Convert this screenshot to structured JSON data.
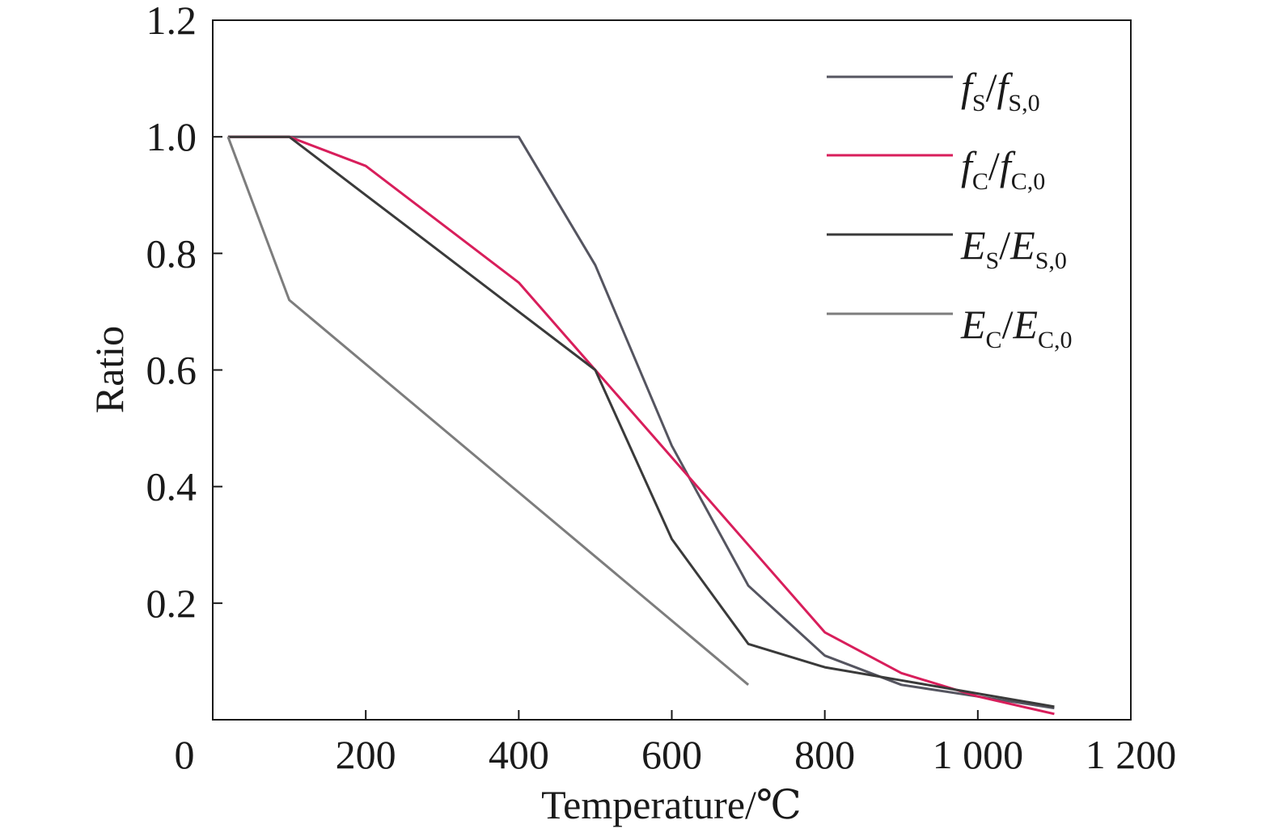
{
  "chart_data": {
    "type": "line",
    "title": "",
    "xlabel": "Temperature/℃",
    "ylabel": "Ratio",
    "xlim": [
      0,
      1200
    ],
    "ylim": [
      0,
      1.2
    ],
    "x_ticks": [
      {
        "value": 0,
        "label": "0"
      },
      {
        "value": 200,
        "label": "200"
      },
      {
        "value": 400,
        "label": "400"
      },
      {
        "value": 600,
        "label": "600"
      },
      {
        "value": 800,
        "label": "800"
      },
      {
        "value": 1000,
        "label": "1 000"
      },
      {
        "value": 1200,
        "label": "1 200"
      }
    ],
    "y_ticks": [
      {
        "value": 0.2,
        "label": "0.2"
      },
      {
        "value": 0.4,
        "label": "0.4"
      },
      {
        "value": 0.6,
        "label": "0.6"
      },
      {
        "value": 0.8,
        "label": "0.8"
      },
      {
        "value": 1.0,
        "label": "1.0"
      },
      {
        "value": 1.2,
        "label": "1.2"
      }
    ],
    "grid": false,
    "legend_position": "top-right",
    "series": [
      {
        "name": "fS/fS,0",
        "legend": {
          "a": "f",
          "a_sub": "S",
          "b": "f",
          "b_sub": "S,0"
        },
        "color": "#555560",
        "x": [
          20,
          100,
          400,
          500,
          600,
          700,
          800,
          900,
          1000,
          1100
        ],
        "y": [
          1.0,
          1.0,
          1.0,
          0.78,
          0.47,
          0.23,
          0.11,
          0.06,
          0.04,
          0.02
        ]
      },
      {
        "name": "fC/fC,0",
        "legend": {
          "a": "f",
          "a_sub": "C",
          "b": "f",
          "b_sub": "C,0"
        },
        "color": "#d81e5b",
        "x": [
          20,
          100,
          200,
          300,
          400,
          500,
          600,
          700,
          800,
          900,
          1000,
          1100
        ],
        "y": [
          1.0,
          1.0,
          0.95,
          0.85,
          0.75,
          0.6,
          0.45,
          0.3,
          0.15,
          0.08,
          0.04,
          0.01
        ]
      },
      {
        "name": "ES/ES,0",
        "legend": {
          "a": "E",
          "a_sub": "S",
          "b": "E",
          "b_sub": "S,0"
        },
        "color": "#3a3a3a",
        "x": [
          20,
          100,
          200,
          300,
          400,
          500,
          600,
          700,
          800,
          900,
          1000,
          1100
        ],
        "y": [
          1.0,
          1.0,
          0.9,
          0.8,
          0.7,
          0.6,
          0.31,
          0.13,
          0.09,
          0.0675,
          0.045,
          0.0225
        ]
      },
      {
        "name": "EC/EC,0",
        "legend": {
          "a": "E",
          "a_sub": "C",
          "b": "E",
          "b_sub": "C,0"
        },
        "color": "#7d7d7d",
        "x": [
          20,
          100,
          700
        ],
        "y": [
          1.0,
          0.72,
          0.06
        ]
      }
    ]
  }
}
